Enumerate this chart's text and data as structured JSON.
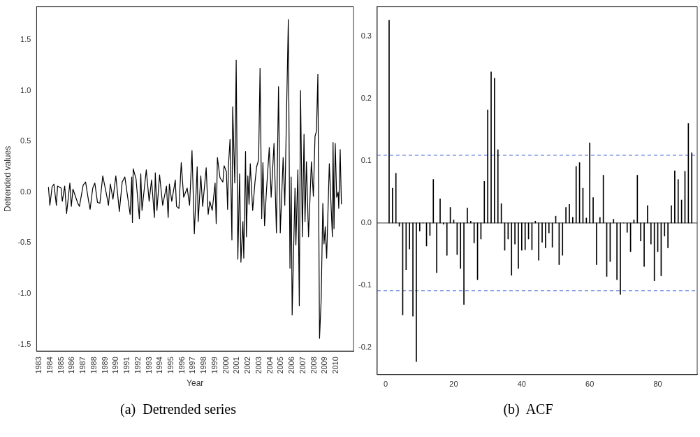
{
  "chart_data": [
    {
      "type": "line",
      "xlabel": "Year",
      "ylabel": "Detrended values",
      "color": "#000000",
      "marker": "none",
      "grid": false,
      "x": [
        1983.84,
        1983.97,
        1984.17,
        1984.34,
        1984.56,
        1984.67,
        1984.99,
        1985.1,
        1985.32,
        1985.49,
        1985.79,
        1985.92,
        1986.07,
        1986.51,
        1986.66,
        1987.0,
        1987.22,
        1987.48,
        1987.63,
        1987.87,
        1988.06,
        1988.3,
        1988.52,
        1988.78,
        1989.1,
        1989.3,
        1989.47,
        1989.71,
        1989.97,
        1990.29,
        1990.55,
        1990.79,
        1991.27,
        1991.42,
        1991.48,
        1991.55,
        1991.81,
        1992.11,
        1992.24,
        1992.35,
        1992.74,
        1993.0,
        1993.22,
        1993.48,
        1993.56,
        1993.71,
        1993.95,
        1994.23,
        1994.58,
        1994.73,
        1994.84,
        1995.06,
        1995.38,
        1995.49,
        1995.71,
        1995.92,
        1996.14,
        1996.46,
        1996.68,
        1996.9,
        1997.11,
        1997.37,
        1997.46,
        1997.7,
        1997.87,
        1998.19,
        1998.37,
        1998.52,
        1998.74,
        1999.0,
        1999.1,
        1999.21,
        1999.45,
        1999.71,
        1999.82,
        2000.03,
        2000.14,
        2000.21,
        2000.36,
        2000.53,
        2000.6,
        2000.79,
        2000.92,
        2001.07,
        2001.23,
        2001.35,
        2001.53,
        2001.61,
        2001.77,
        2001.85,
        2001.98,
        2002.09,
        2002.2,
        2002.42,
        2002.63,
        2002.78,
        2002.96,
        2003.09,
        2003.24,
        2003.35,
        2003.5,
        2003.67,
        2003.93,
        2004.1,
        2004.36,
        2004.58,
        2004.77,
        2004.93,
        2005.19,
        2005.34,
        2005.66,
        2005.81,
        2005.92,
        2006.01,
        2006.27,
        2006.35,
        2006.53,
        2006.66,
        2006.77,
        2006.94,
        2007.09,
        2007.18,
        2007.31,
        2007.5,
        2007.76,
        2007.94,
        2008.09,
        2008.22,
        2008.35,
        2008.5,
        2008.65,
        2008.8,
        2008.91,
        2009.02,
        2009.15,
        2009.39,
        2009.67,
        2009.73,
        2009.82,
        2009.93,
        2010.06,
        2010.19,
        2010.25,
        2010.38,
        2010.49
      ],
      "values": [
        0.05,
        -0.13,
        0.05,
        0.08,
        -0.13,
        0.06,
        0.04,
        -0.09,
        0.06,
        -0.21,
        0.09,
        -0.14,
        0.03,
        -0.11,
        -0.14,
        0.07,
        0.1,
        -0.08,
        -0.17,
        0.04,
        0.09,
        -0.1,
        -0.11,
        0.16,
        -0.01,
        -0.13,
        0.08,
        -0.07,
        0.16,
        -0.19,
        0.1,
        0.15,
        -0.22,
        0.15,
        -0.3,
        0.23,
        0.13,
        -0.26,
        0.18,
        -0.18,
        0.22,
        -0.09,
        0.12,
        -0.25,
        0.19,
        -0.18,
        0.17,
        -0.13,
        0.06,
        -0.25,
        0.08,
        -0.09,
        0.12,
        -0.14,
        -0.16,
        0.29,
        -0.05,
        0.04,
        -0.13,
        0.41,
        -0.41,
        0.25,
        -0.29,
        0.16,
        -0.14,
        0.24,
        -0.22,
        -0.09,
        -0.18,
        0.09,
        -0.31,
        0.34,
        0.14,
        0.1,
        0.26,
        0.2,
        -0.17,
        0.25,
        0.52,
        -0.47,
        0.84,
        0.09,
        1.3,
        -0.66,
        0.18,
        -0.69,
        -0.29,
        -0.65,
        0.4,
        -0.44,
        0.16,
        -0.12,
        0.28,
        -0.18,
        0.1,
        0.25,
        0.32,
        1.22,
        -0.26,
        0.29,
        -0.33,
        0.01,
        0.44,
        -0.05,
        0.48,
        -0.4,
        1.04,
        -0.4,
        0.34,
        -0.13,
        1.7,
        -0.75,
        0.15,
        -1.21,
        0.04,
        -0.52,
        0.22,
        -1.12,
        1.0,
        -0.44,
        0.57,
        -0.29,
        0.3,
        -0.44,
        0.3,
        -0.04,
        0.55,
        0.6,
        1.16,
        -1.44,
        -1.06,
        -0.11,
        -0.51,
        -0.34,
        -0.65,
        0.28,
        -0.44,
        0.49,
        -0.36,
        0.48,
        -0.05,
        0.0,
        -0.16,
        0.42,
        -0.12
      ],
      "xlim": [
        1982.76,
        2011.59
      ],
      "xticks": [
        1983,
        1984,
        1985,
        1986,
        1987,
        1988,
        1989,
        1990,
        1991,
        1992,
        1993,
        1994,
        1995,
        1996,
        1997,
        1998,
        1999,
        2000,
        2001,
        2002,
        2003,
        2004,
        2005,
        2006,
        2007,
        2008,
        2009,
        2010
      ],
      "ylim": [
        -1.565,
        1.826
      ],
      "yticks": [
        -1.5,
        {
          "value": -1,
          "label": "-1.0"
        },
        -0.5,
        {
          "value": 0,
          "label": "0.0"
        },
        0.5,
        {
          "value": 1,
          "label": "1.0"
        },
        1.5
      ],
      "annotations": [
        "(a)  Detrended series"
      ]
    },
    {
      "type": "bar",
      "color": "#000000",
      "grid": false,
      "x": [
        1,
        2,
        3,
        4,
        5,
        6,
        7,
        8,
        9,
        10,
        11,
        12,
        13,
        14,
        15,
        16,
        17,
        18,
        19,
        20,
        21,
        22,
        23,
        24,
        25,
        26,
        27,
        28,
        29,
        30,
        31,
        32,
        33,
        34,
        35,
        36,
        37,
        38,
        39,
        40,
        41,
        42,
        43,
        44,
        45,
        46,
        47,
        48,
        49,
        50,
        51,
        52,
        53,
        54,
        55,
        56,
        57,
        58,
        59,
        60,
        61,
        62,
        63,
        64,
        65,
        66,
        67,
        68,
        69,
        70,
        71,
        72,
        73,
        74,
        75,
        76,
        77,
        78,
        79,
        80,
        81,
        82,
        83,
        84,
        85,
        86,
        87,
        88,
        89,
        90
      ],
      "values": [
        0.326,
        0.056,
        0.08,
        -0.005,
        -0.148,
        -0.075,
        -0.042,
        -0.15,
        -0.223,
        -0.013,
        0,
        -0.037,
        -0.02,
        0.07,
        -0.08,
        0.039,
        -0.002,
        -0.052,
        0.025,
        0.005,
        -0.051,
        -0.073,
        -0.131,
        0.024,
        0.003,
        -0.032,
        -0.091,
        -0.026,
        0.067,
        0.182,
        0.243,
        0.233,
        0.118,
        0.031,
        -0.044,
        -0.026,
        -0.084,
        -0.034,
        -0.073,
        -0.044,
        -0.043,
        -0.026,
        -0.043,
        0.003,
        -0.06,
        -0.031,
        -0.04,
        -0.016,
        -0.039,
        0.011,
        -0.067,
        -0.052,
        0.025,
        0.03,
        0.009,
        0.091,
        0.097,
        0.056,
        0.008,
        0.129,
        0.041,
        -0.067,
        0.009,
        0.077,
        -0.086,
        -0.062,
        0.006,
        -0.091,
        -0.115,
        0,
        -0.015,
        -0.046,
        0.005,
        0.077,
        -0.029,
        -0.07,
        0.028,
        -0.034,
        -0.093,
        -0.046,
        -0.085,
        -0.021,
        -0.04,
        0.028,
        0.084,
        0.07,
        0.037,
        0.083,
        0.16,
        0.113
      ],
      "xlim": [
        -2.5,
        91.6
      ],
      "xticks": [
        0,
        20,
        40,
        60,
        80
      ],
      "ylim": [
        -0.244,
        0.348
      ],
      "yticks": [
        -0.2,
        -0.1,
        {
          "value": 0,
          "label": "0.0"
        },
        0.1,
        0.2,
        0.3
      ],
      "ref_lines": [
        {
          "axis": "y",
          "value": 0,
          "color": "#000000",
          "line_style": "solid"
        },
        {
          "axis": "y",
          "value": 0.109,
          "color": "#2b4fd0",
          "line_style": "dashed"
        },
        {
          "axis": "y",
          "value": -0.109,
          "color": "#2b4fd0",
          "line_style": "dashed"
        }
      ],
      "annotations": [
        "(b)  ACF"
      ]
    }
  ]
}
